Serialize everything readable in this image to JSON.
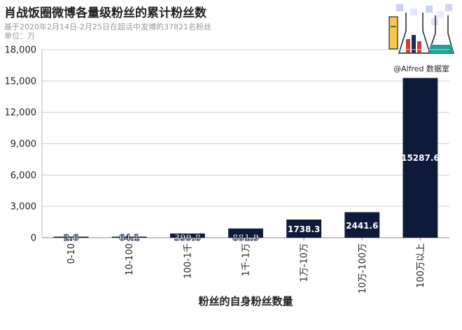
{
  "header": {
    "title": "肖战饭圈微博各量级粉丝的累计粉丝数",
    "subtitle": "基于2020年2月14日-2月25日在超话中发博的37821名粉丝",
    "unit": "单位：万"
  },
  "branding": {
    "credit": "@Alfred 数据室"
  },
  "colors": {
    "bar": "#0d1a3a",
    "label_on_bar": "#ffffff",
    "label_small_fill": "#ffffff",
    "label_small_stroke": "#0d1a3a"
  },
  "chart_data": {
    "type": "bar",
    "title": "肖战饭圈微博各量级粉丝的累计粉丝数",
    "xlabel": "粉丝的自身粉丝数量",
    "ylabel": "",
    "ylim": [
      0,
      18000
    ],
    "yticks": [
      "0",
      "3,000",
      "6,000",
      "9,000",
      "12,000",
      "15,000",
      "18,000"
    ],
    "ytick_values": [
      0,
      3000,
      6000,
      9000,
      12000,
      15000,
      18000
    ],
    "categories": [
      "0-10",
      "10-100",
      "100-1千",
      "1千-1万",
      "1万-10万",
      "10万-100万",
      "100万以上"
    ],
    "values": [
      2.6,
      64.1,
      399.8,
      881.9,
      1738.3,
      2441.6,
      15287.6
    ],
    "value_labels": [
      "2.6",
      "64.1",
      "399.8",
      "881.9",
      "1738.3",
      "2441.6",
      "15287.6"
    ],
    "grid": true
  }
}
